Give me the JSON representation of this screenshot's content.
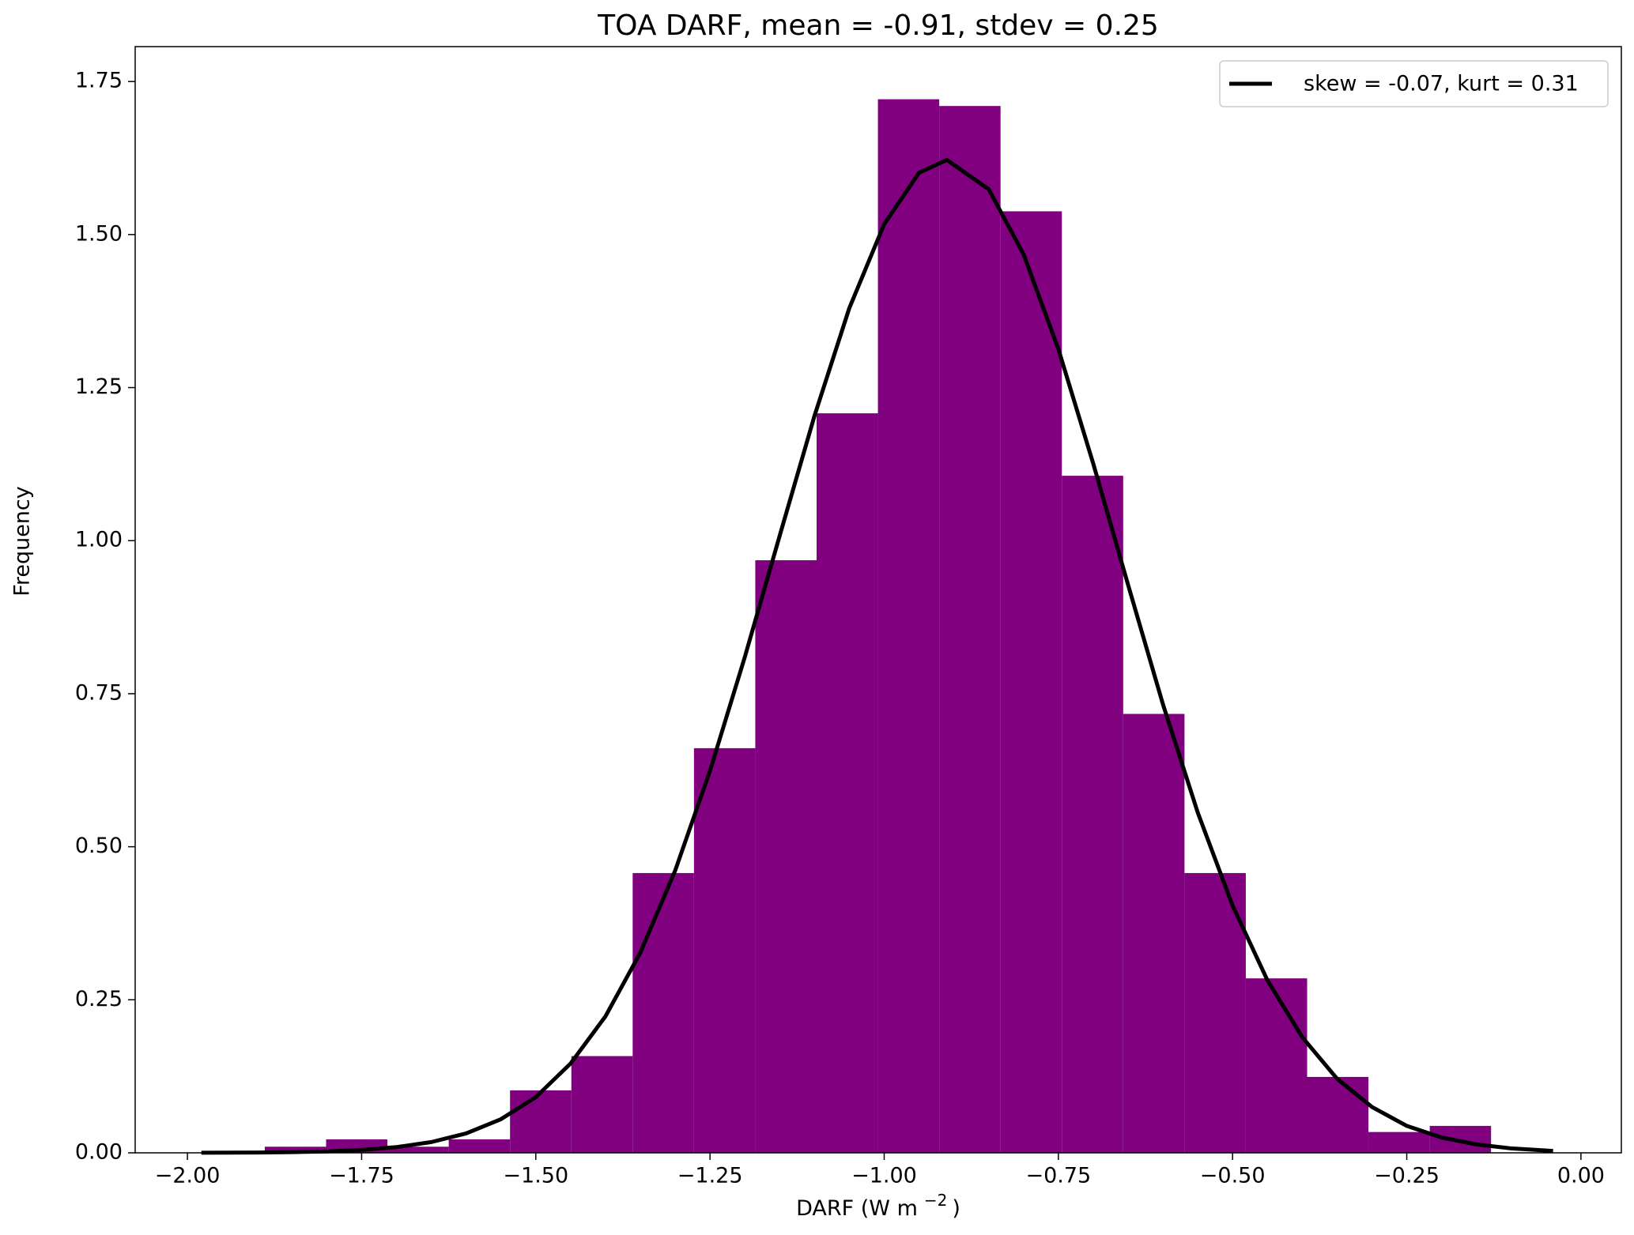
{
  "chart_data": {
    "type": "histogram",
    "title": "TOA DARF, mean = -0.91, stdev = 0.25",
    "xlabel": [
      "DARF (W m",
      "−2",
      ")"
    ],
    "ylabel": "Frequency",
    "color": "#800080",
    "bins": [
      -1.889,
      -1.801,
      -1.713,
      -1.625,
      -1.537,
      -1.449,
      -1.361,
      -1.273,
      -1.185,
      -1.097,
      -1.009,
      -0.921,
      -0.833,
      -0.745,
      -0.657,
      -0.569,
      -0.481,
      -0.393,
      -0.305,
      -0.217,
      -0.129
    ],
    "values": [
      0.01,
      0.022,
      0.01,
      0.022,
      0.102,
      0.158,
      0.457,
      0.661,
      0.968,
      1.208,
      1.721,
      1.71,
      1.538,
      1.106,
      0.717,
      0.457,
      0.285,
      0.124,
      0.034,
      0.044
    ],
    "line": {
      "name": "skew = -0.07, kurt = 0.31",
      "color": "#000000",
      "x": [
        -1.98,
        -1.9,
        -1.85,
        -1.8,
        -1.75,
        -1.7,
        -1.65,
        -1.6,
        -1.55,
        -1.5,
        -1.45,
        -1.4,
        -1.35,
        -1.3,
        -1.25,
        -1.2,
        -1.15,
        -1.1,
        -1.05,
        -1.0,
        -0.95,
        -0.91,
        -0.85,
        -0.8,
        -0.75,
        -0.7,
        -0.65,
        -0.6,
        -0.55,
        -0.5,
        -0.45,
        -0.4,
        -0.35,
        -0.3,
        -0.25,
        -0.2,
        -0.15,
        -0.1,
        -0.04
      ],
      "values": [
        0.0001,
        0.0005,
        0.0011,
        0.0023,
        0.0048,
        0.0093,
        0.0176,
        0.0317,
        0.055,
        0.091,
        0.146,
        0.223,
        0.327,
        0.461,
        0.624,
        0.81,
        1.008,
        1.204,
        1.38,
        1.517,
        1.601,
        1.622,
        1.574,
        1.468,
        1.313,
        1.126,
        0.928,
        0.733,
        0.556,
        0.404,
        0.282,
        0.189,
        0.121,
        0.075,
        0.044,
        0.025,
        0.0137,
        0.0072,
        0.0031
      ]
    },
    "xlim": [
      -2.075,
      0.058
    ],
    "ylim": [
      0,
      1.807
    ],
    "xticks": [
      {
        "value": -2,
        "label": "−2.00"
      },
      {
        "value": -1.75,
        "label": "−1.75"
      },
      {
        "value": -1.5,
        "label": "−1.50"
      },
      {
        "value": -1.25,
        "label": "−1.25"
      },
      {
        "value": -1,
        "label": "−1.00"
      },
      {
        "value": -0.75,
        "label": "−0.75"
      },
      {
        "value": -0.5,
        "label": "−0.50"
      },
      {
        "value": -0.25,
        "label": "−0.25"
      },
      {
        "value": 0,
        "label": "0.00"
      }
    ],
    "yticks": [
      {
        "value": 0,
        "label": "0.00"
      },
      {
        "value": 0.25,
        "label": "0.25"
      },
      {
        "value": 0.5,
        "label": "0.50"
      },
      {
        "value": 0.75,
        "label": "0.75"
      },
      {
        "value": 1,
        "label": "1.00"
      },
      {
        "value": 1.25,
        "label": "1.25"
      },
      {
        "value": 1.5,
        "label": "1.50"
      },
      {
        "value": 1.75,
        "label": "1.75"
      }
    ],
    "grid": false,
    "legend": "upper right"
  }
}
